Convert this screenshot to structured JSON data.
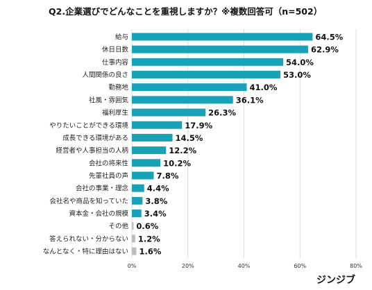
{
  "brand": "ジンジブ",
  "chart_data": {
    "type": "bar",
    "orientation": "horizontal",
    "title": "Q2.企業選びでどんなことを重視しますか？※複数回答可（n=502）",
    "xlabel": "",
    "ylabel": "",
    "xlim": [
      0,
      80
    ],
    "ticks": [
      0,
      20,
      40,
      60,
      80
    ],
    "tick_labels": [
      "0%",
      "20%",
      "40%",
      "60%",
      "80%"
    ],
    "grid": true,
    "legend": "none",
    "categories": [
      "給与",
      "休日日数",
      "仕事内容",
      "人間関係の良さ",
      "勤務地",
      "社風・雰囲気",
      "福利厚生",
      "やりたいことができる環境",
      "成長できる環境がある",
      "経営者や人事担当の人柄",
      "会社の将来性",
      "先輩社員の声",
      "会社の事業・理念",
      "会社名や商品を知っていた",
      "資本金・会社の規模",
      "その他",
      "答えられない・分からない",
      "なんとなく・特に理由はない"
    ],
    "values": [
      64.5,
      62.9,
      54.0,
      53.0,
      41.0,
      36.1,
      26.3,
      17.9,
      14.5,
      12.2,
      10.2,
      7.8,
      4.4,
      3.8,
      3.4,
      0.6,
      1.2,
      1.6
    ],
    "value_labels": [
      "64.5%",
      "62.9%",
      "54.0%",
      "53.0%",
      "41.0%",
      "36.1%",
      "26.3%",
      "17.9%",
      "14.5%",
      "12.2%",
      "10.2%",
      "7.8%",
      "4.4%",
      "3.8%",
      "3.4%",
      "0.6%",
      "1.2%",
      "1.6%"
    ],
    "bar_colors": [
      "#17a2b8",
      "#17a2b8",
      "#17a2b8",
      "#17a2b8",
      "#17a2b8",
      "#17a2b8",
      "#17a2b8",
      "#17a2b8",
      "#17a2b8",
      "#17a2b8",
      "#17a2b8",
      "#17a2b8",
      "#17a2b8",
      "#17a2b8",
      "#17a2b8",
      "#bdbdbd",
      "#bdbdbd",
      "#bdbdbd"
    ],
    "grid_color": "#dddddd"
  }
}
